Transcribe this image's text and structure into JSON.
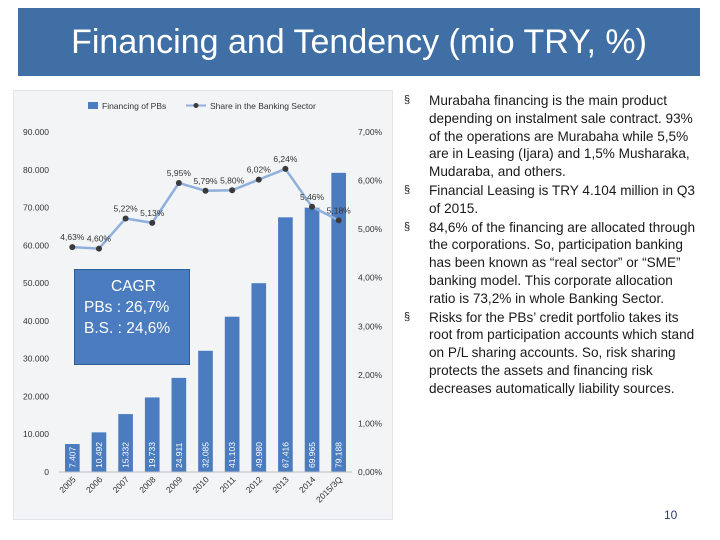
{
  "slide": {
    "title": "Financing and Tendency (mio TRY, %)",
    "page_number": "10",
    "bullet_marker": "§",
    "bullets": [
      "Murabaha financing is the main product depending on instalment sale contract. 93% of the operations are Murabaha while 5,5% are in Leasing (Ijara) and 1,5% Musharaka, Mudaraba, and others.",
      "Financial Leasing is TRY 4.104 million in Q3 of 2015.",
      "84,6% of the financing are allocated through the corporations. So, participation banking has been known as “real sector” or “SME” banking model. This corporate allocation ratio is 73,2% in whole  Banking Sector.",
      "Risks for the PBs’ credit portfolio takes its root from participation accounts which stand on P/L sharing accounts. So, risk sharing protects the assets and financing risk decreases automatically liability sources."
    ],
    "cagr_box": {
      "title": "CAGR",
      "line1": "PBs : 26,7%",
      "line2": "B.S. : 24,6%"
    }
  },
  "chart_data": {
    "type": "bar+line",
    "categories": [
      "2005",
      "2006",
      "2007",
      "2008",
      "2009",
      "2010",
      "2011",
      "2012",
      "2013",
      "2014",
      "2015/3Q"
    ],
    "series": [
      {
        "name": "Financing of PBs",
        "type": "bar",
        "axis": "left",
        "values": [
          7407,
          10492,
          15332,
          19733,
          24911,
          32085,
          41103,
          49980,
          67416,
          69965,
          79188
        ],
        "labels": [
          "7.407",
          "10.492",
          "15.332",
          "19.733",
          "24.911",
          "32.085",
          "41.103",
          "49.980",
          "67.416",
          "69.965",
          "79.188"
        ],
        "color": "#4a7cbf"
      },
      {
        "name": "Share in the Banking Sector",
        "type": "line",
        "axis": "right",
        "values": [
          4.63,
          4.6,
          5.22,
          5.13,
          5.95,
          5.79,
          5.8,
          6.02,
          6.24,
          5.46,
          5.18
        ],
        "labels": [
          "4,63%",
          "4,60%",
          "5,22%",
          "5,13%",
          "5,95%",
          "5,79%",
          "5,80%",
          "6,02%",
          "6,24%",
          "5,46%",
          "5,18%"
        ],
        "color": "#8fb0dc",
        "marker_color": "#3a3a3a"
      }
    ],
    "left_axis": {
      "ylim": [
        0,
        90000
      ],
      "ticks": [
        0,
        10000,
        20000,
        30000,
        40000,
        50000,
        60000,
        70000,
        80000,
        90000
      ],
      "tick_labels": [
        "0",
        "10.000",
        "20.000",
        "30.000",
        "40.000",
        "50.000",
        "60.000",
        "70.000",
        "80.000",
        "90.000"
      ]
    },
    "right_axis": {
      "ylim": [
        0,
        7
      ],
      "ticks": [
        0,
        1,
        2,
        3,
        4,
        5,
        6,
        7
      ],
      "tick_labels": [
        "0,00%",
        "1,00%",
        "2,00%",
        "3,00%",
        "4,00%",
        "5,00%",
        "6,00%",
        "7,00%"
      ]
    },
    "grid": false,
    "legend_placement": "top"
  }
}
